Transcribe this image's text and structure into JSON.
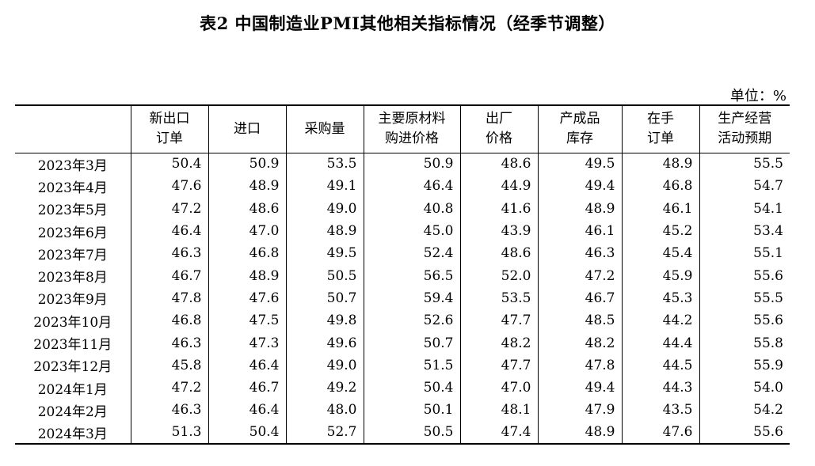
{
  "title": "表2 中国制造业PMI其他相关指标情况（经季节调整）",
  "unit": "单位：%",
  "columns": [
    {
      "line1": "",
      "line2": ""
    },
    {
      "line1": "新出口",
      "line2": "订单"
    },
    {
      "line1": "进口",
      "line2": ""
    },
    {
      "line1": "采购量",
      "line2": ""
    },
    {
      "line1": "主要原材料",
      "line2": "购进价格"
    },
    {
      "line1": "出厂",
      "line2": "价格"
    },
    {
      "line1": "产成品",
      "line2": "库存"
    },
    {
      "line1": "在手",
      "line2": "订单"
    },
    {
      "line1": "生产经营",
      "line2": "活动预期"
    }
  ],
  "rows": [
    {
      "month": "2023年3月",
      "values": [
        "50.4",
        "50.9",
        "53.5",
        "50.9",
        "48.6",
        "49.5",
        "48.9",
        "55.5"
      ]
    },
    {
      "month": "2023年4月",
      "values": [
        "47.6",
        "48.9",
        "49.1",
        "46.4",
        "44.9",
        "49.4",
        "46.8",
        "54.7"
      ]
    },
    {
      "month": "2023年5月",
      "values": [
        "47.2",
        "48.6",
        "49.0",
        "40.8",
        "41.6",
        "48.9",
        "46.1",
        "54.1"
      ]
    },
    {
      "month": "2023年6月",
      "values": [
        "46.4",
        "47.0",
        "48.9",
        "45.0",
        "43.9",
        "46.1",
        "45.2",
        "53.4"
      ]
    },
    {
      "month": "2023年7月",
      "values": [
        "46.3",
        "46.8",
        "49.5",
        "52.4",
        "48.6",
        "46.3",
        "45.4",
        "55.1"
      ]
    },
    {
      "month": "2023年8月",
      "values": [
        "46.7",
        "48.9",
        "50.5",
        "56.5",
        "52.0",
        "47.2",
        "45.9",
        "55.6"
      ]
    },
    {
      "month": "2023年9月",
      "values": [
        "47.8",
        "47.6",
        "50.7",
        "59.4",
        "53.5",
        "46.7",
        "45.3",
        "55.5"
      ]
    },
    {
      "month": "2023年10月",
      "values": [
        "46.8",
        "47.5",
        "49.8",
        "52.6",
        "47.7",
        "48.5",
        "44.2",
        "55.6"
      ]
    },
    {
      "month": "2023年11月",
      "values": [
        "46.3",
        "47.3",
        "49.6",
        "50.7",
        "48.2",
        "48.2",
        "44.4",
        "55.8"
      ]
    },
    {
      "month": "2023年12月",
      "values": [
        "45.8",
        "46.4",
        "49.0",
        "51.5",
        "47.7",
        "47.8",
        "44.5",
        "55.9"
      ]
    },
    {
      "month": "2024年1月",
      "values": [
        "47.2",
        "46.7",
        "49.2",
        "50.4",
        "47.0",
        "49.4",
        "44.3",
        "54.0"
      ]
    },
    {
      "month": "2024年2月",
      "values": [
        "46.3",
        "46.4",
        "48.0",
        "50.1",
        "48.1",
        "47.9",
        "43.5",
        "54.2"
      ]
    },
    {
      "month": "2024年3月",
      "values": [
        "51.3",
        "50.4",
        "52.7",
        "50.5",
        "47.4",
        "48.9",
        "47.6",
        "55.6"
      ]
    }
  ]
}
